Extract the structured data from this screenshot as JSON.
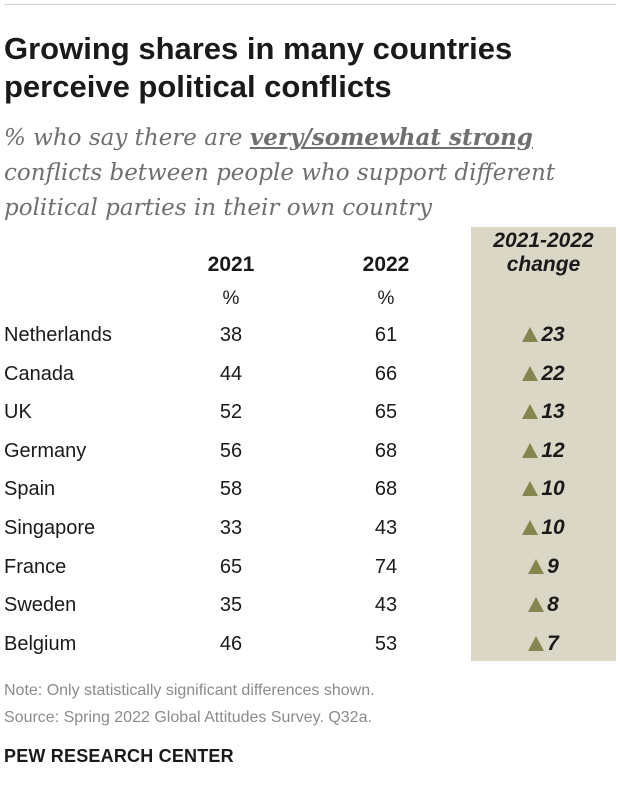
{
  "title_line1": "Growing shares in many countries",
  "title_line2": "perceive political conflicts",
  "subtitle": {
    "pre": "% who say there are ",
    "emphasis": "very/somewhat strong",
    "post": " conflicts between people who support different political parties in their own country"
  },
  "columns": {
    "y2021": "2021",
    "y2022": "2022",
    "unit": "%",
    "change_line1": "2021-2022",
    "change_line2": "change"
  },
  "colors": {
    "change_bg": "#dad7c6",
    "triangle": "#84864f",
    "note": "#8b8b8b"
  },
  "chart_data": {
    "type": "table",
    "columns": [
      "2021",
      "2022",
      "2021-2022 change"
    ],
    "rows": [
      {
        "country": "Netherlands",
        "y2021": "38",
        "y2022": "61",
        "change": "23"
      },
      {
        "country": "Canada",
        "y2021": "44",
        "y2022": "66",
        "change": "22"
      },
      {
        "country": "UK",
        "y2021": "52",
        "y2022": "65",
        "change": "13"
      },
      {
        "country": "Germany",
        "y2021": "56",
        "y2022": "68",
        "change": "12"
      },
      {
        "country": "Spain",
        "y2021": "58",
        "y2022": "68",
        "change": "10"
      },
      {
        "country": "Singapore",
        "y2021": "33",
        "y2022": "43",
        "change": "10"
      },
      {
        "country": "France",
        "y2021": "65",
        "y2022": "74",
        "change": "9"
      },
      {
        "country": "Sweden",
        "y2021": "35",
        "y2022": "43",
        "change": "8"
      },
      {
        "country": "Belgium",
        "y2021": "46",
        "y2022": "53",
        "change": "7"
      }
    ]
  },
  "note": "Note: Only statistically significant differences shown.",
  "source": "Source: Spring 2022 Global Attitudes Survey. Q32a.",
  "org": "PEW RESEARCH CENTER"
}
